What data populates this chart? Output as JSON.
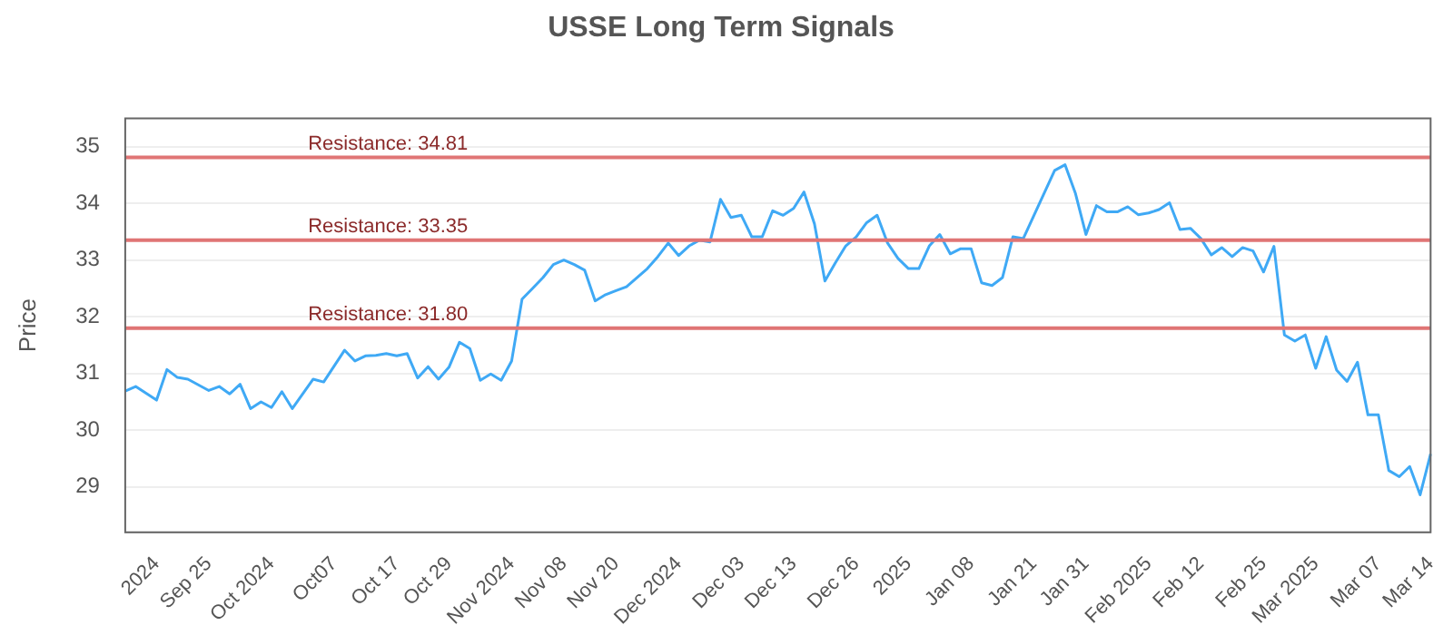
{
  "chart_data": {
    "type": "line",
    "title": "USSE Long Term Signals",
    "ylabel": "Price",
    "categories": [
      null,
      null,
      null,
      "2024",
      null,
      null,
      null,
      null,
      "Sep 25",
      null,
      null,
      null,
      null,
      null,
      "Oct 2024",
      null,
      null,
      null,
      null,
      null,
      "Oct07",
      null,
      null,
      null,
      null,
      null,
      "Oct 17",
      null,
      null,
      null,
      null,
      "Oct 29",
      null,
      null,
      null,
      null,
      null,
      "Nov 2024",
      null,
      null,
      null,
      null,
      "Nov 08",
      null,
      null,
      null,
      null,
      "Nov 20",
      null,
      null,
      null,
      null,
      null,
      "Dec 2024",
      null,
      null,
      null,
      null,
      null,
      "Dec 03",
      null,
      null,
      null,
      null,
      "Dec 13",
      null,
      null,
      null,
      null,
      null,
      "Dec 26",
      null,
      null,
      null,
      null,
      "2025",
      null,
      null,
      null,
      null,
      null,
      "Jan 08",
      null,
      null,
      null,
      null,
      null,
      "Jan 21",
      null,
      null,
      null,
      null,
      "Jan 31",
      null,
      null,
      null,
      null,
      null,
      "Feb 2025",
      null,
      null,
      null,
      null,
      "Feb 12",
      null,
      null,
      null,
      null,
      null,
      "Feb 25",
      null,
      null,
      null,
      null,
      "Mar 2025",
      null,
      null,
      null,
      null,
      null,
      "Mar 07",
      null,
      null,
      null,
      null,
      "Mar 14"
    ],
    "series": [
      {
        "color": "#3fa9f5",
        "values": [
          30.69,
          30.77,
          30.65,
          30.53,
          31.07,
          30.93,
          30.9,
          30.8,
          30.7,
          30.77,
          30.64,
          30.81,
          30.38,
          30.5,
          30.4,
          30.68,
          30.38,
          30.64,
          30.9,
          30.85,
          31.13,
          31.41,
          31.22,
          31.31,
          31.32,
          31.35,
          31.31,
          31.35,
          30.92,
          31.12,
          30.9,
          31.11,
          31.55,
          31.44,
          30.88,
          30.99,
          30.88,
          31.22,
          32.31,
          32.5,
          32.69,
          32.92,
          33.0,
          32.92,
          32.82,
          32.28,
          32.39,
          32.46,
          32.53,
          32.69,
          32.85,
          33.06,
          33.3,
          33.08,
          33.25,
          33.35,
          33.32,
          34.07,
          33.75,
          33.79,
          33.41,
          33.41,
          33.87,
          33.79,
          33.91,
          34.2,
          33.64,
          32.63,
          32.95,
          33.25,
          33.41,
          33.66,
          33.79,
          33.3,
          33.03,
          32.85,
          32.85,
          33.25,
          33.45,
          33.11,
          33.2,
          33.2,
          32.6,
          32.55,
          32.69,
          33.41,
          33.38,
          33.78,
          34.18,
          34.58,
          34.68,
          34.17,
          33.45,
          33.96,
          33.85,
          33.85,
          33.94,
          33.8,
          33.83,
          33.89,
          34.01,
          33.54,
          33.56,
          33.38,
          33.09,
          33.22,
          33.06,
          33.22,
          33.16,
          32.79,
          33.24,
          31.68,
          31.57,
          31.68,
          31.09,
          31.65,
          31.06,
          30.86,
          31.2,
          30.27,
          30.27,
          29.29,
          29.18,
          29.36,
          28.86,
          29.58
        ]
      }
    ],
    "ylim": [
      28.2,
      35.5
    ],
    "yticks": [
      29,
      30,
      31,
      32,
      33,
      34,
      35
    ],
    "grid": "y",
    "legend": false,
    "marker": "none",
    "line_style": "solid",
    "ref_lines": [
      {
        "axis": "y",
        "value": 34.81,
        "label": "Resistance: 34.81",
        "color": "#e07575"
      },
      {
        "axis": "y",
        "value": 33.35,
        "label": "Resistance: 33.35",
        "color": "#e07575"
      },
      {
        "axis": "y",
        "value": 31.8,
        "label": "Resistance: 31.80",
        "color": "#e07575"
      }
    ]
  }
}
